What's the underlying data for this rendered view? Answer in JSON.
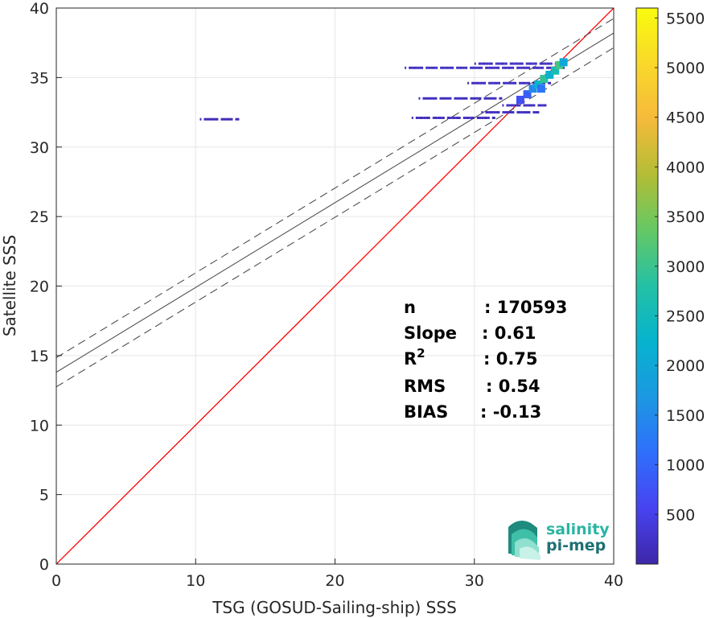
{
  "chart_data": {
    "type": "heatmap",
    "xlabel": "TSG (GOSUD-Sailing-ship) SSS",
    "ylabel": "Satellite SSS",
    "xlim": [
      0,
      40
    ],
    "ylim": [
      0,
      40
    ],
    "xticks": [
      0,
      10,
      20,
      30,
      40
    ],
    "yticks": [
      0,
      5,
      10,
      15,
      20,
      25,
      30,
      35,
      40
    ],
    "grid": true,
    "colorbar": {
      "ticks": [
        500,
        1000,
        1500,
        2000,
        2500,
        3000,
        3500,
        4000,
        4500,
        5000,
        5500
      ],
      "range": [
        0,
        5600
      ],
      "colormap": "parula",
      "colors": [
        "#3e26a8",
        "#4743f0",
        "#2f6ffc",
        "#1c98e2",
        "#06b3ce",
        "#23c1a5",
        "#64c864",
        "#b3bd35",
        "#f5ba3b",
        "#f9d82a",
        "#f9fb0e"
      ]
    },
    "one_to_one_line": {
      "x": [
        0,
        40
      ],
      "y": [
        0,
        40
      ],
      "color": "#ff0000"
    },
    "fit_line": {
      "intercept": 13.8,
      "slope": 0.61,
      "color": "#404040"
    },
    "fit_bounds": {
      "offset": 1.05,
      "color": "#404040",
      "style": "dashed"
    },
    "density_segments": [
      {
        "x1": 10.3,
        "x2": 13.0,
        "y": 32.0,
        "count": 120
      },
      {
        "x1": 25.0,
        "x2": 36.3,
        "y": 35.7,
        "count": 200
      },
      {
        "x1": 30.0,
        "x2": 36.3,
        "y": 36.0,
        "count": 220
      },
      {
        "x1": 29.5,
        "x2": 35.5,
        "y": 34.6,
        "count": 200
      },
      {
        "x1": 26.0,
        "x2": 32.0,
        "y": 33.5,
        "count": 180
      },
      {
        "x1": 32.0,
        "x2": 35.0,
        "y": 33.0,
        "count": 220
      },
      {
        "x1": 25.5,
        "x2": 31.5,
        "y": 32.1,
        "count": 160
      },
      {
        "x1": 30.5,
        "x2": 34.5,
        "y": 32.5,
        "count": 200
      }
    ],
    "density_cluster": [
      {
        "x": 33.8,
        "y": 33.8,
        "count": 900
      },
      {
        "x": 34.2,
        "y": 34.2,
        "count": 1500
      },
      {
        "x": 34.6,
        "y": 34.5,
        "count": 2300
      },
      {
        "x": 35.0,
        "y": 34.9,
        "count": 2900
      },
      {
        "x": 35.4,
        "y": 35.2,
        "count": 2200
      },
      {
        "x": 35.8,
        "y": 35.5,
        "count": 2600
      },
      {
        "x": 36.1,
        "y": 35.9,
        "count": 3100
      },
      {
        "x": 36.4,
        "y": 36.1,
        "count": 2000
      },
      {
        "x": 33.3,
        "y": 33.4,
        "count": 700
      },
      {
        "x": 34.8,
        "y": 34.2,
        "count": 1200
      }
    ]
  },
  "stats": [
    {
      "label": "n",
      "value": ": 170593"
    },
    {
      "label": "Slope",
      "value": ": 0.61"
    },
    {
      "label": "R",
      "sup": "2",
      "value": ": 0.75"
    },
    {
      "label": "RMS",
      "value": ": 0.54"
    },
    {
      "label": "BIAS",
      "value": ": -0.13"
    }
  ],
  "logo": {
    "line1": "salinity",
    "line2": "pi-mep",
    "color1": "#2bb5a2",
    "color2": "#1f6f73"
  }
}
